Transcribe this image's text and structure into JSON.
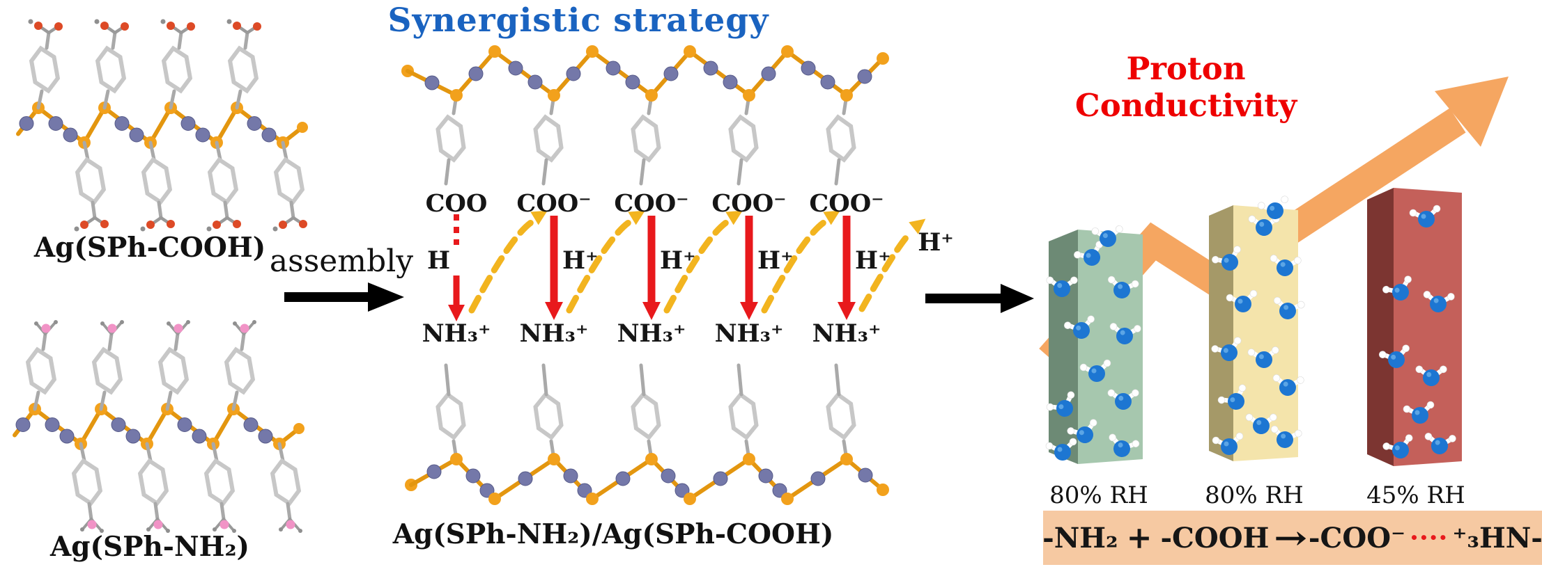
{
  "titles": {
    "strategy": "Synergistic strategy",
    "conductivity": "Proton Conductivity"
  },
  "structures": {
    "left_top_label": "Ag(SPh-COOH)",
    "left_bottom_label": "Ag(SPh-NH₂)",
    "middle_label": "Ag(SPh-NH₂)/Ag(SPh-COOH)"
  },
  "assembly_label": "assembly",
  "proton_transfer": {
    "columns": [
      {
        "acid": "COO",
        "proton": "H",
        "base": "NH₃⁺"
      },
      {
        "acid": "COO⁻",
        "proton": "H⁺",
        "base": "NH₃⁺"
      },
      {
        "acid": "COO⁻",
        "proton": "H⁺",
        "base": "NH₃⁺"
      },
      {
        "acid": "COO⁻",
        "proton": "H⁺",
        "base": "NH₃⁺"
      },
      {
        "acid": "COO⁻",
        "proton": "H⁺",
        "base": "NH₃⁺"
      }
    ],
    "released_proton": "H⁺"
  },
  "bars": [
    {
      "label": "80% RH",
      "front_color": "#a6c7ae",
      "side_color": "#6d8a75"
    },
    {
      "label": "80% RH",
      "front_color": "#f4e4ab",
      "side_color": "#a59968"
    },
    {
      "label": "45% RH",
      "front_color": "#c4605a",
      "side_color": "#7c3531"
    }
  ],
  "equation": {
    "reactant1": "-NH₂",
    "plus": "+",
    "reactant2": "-COOH",
    "arrow": "→",
    "product_acid": "-COO⁻",
    "bridge_dots": "••••",
    "product_base": "⁺₃HN-"
  },
  "colors": {
    "strategy_title": "#1a63c0",
    "conductivity_title": "#ee0000",
    "growth_arrow": "#f5a661",
    "proton_arrow_red": "#e8191c",
    "hop_arrow_yellow": "#f2b41f",
    "equation_bg": "#f6c9a2",
    "dots_red": "#e8191c",
    "bond_orange": "#e3960f",
    "sulfur_atom": "#f2a11c",
    "silver_atom": "#7478a9",
    "oxygen_red": "#dd4a26",
    "nitrogen_pink": "#f193c6",
    "ring_gray": "#c7c7c7",
    "stem_gray": "#a9a9a9",
    "water_blue": "#1d76d2"
  }
}
